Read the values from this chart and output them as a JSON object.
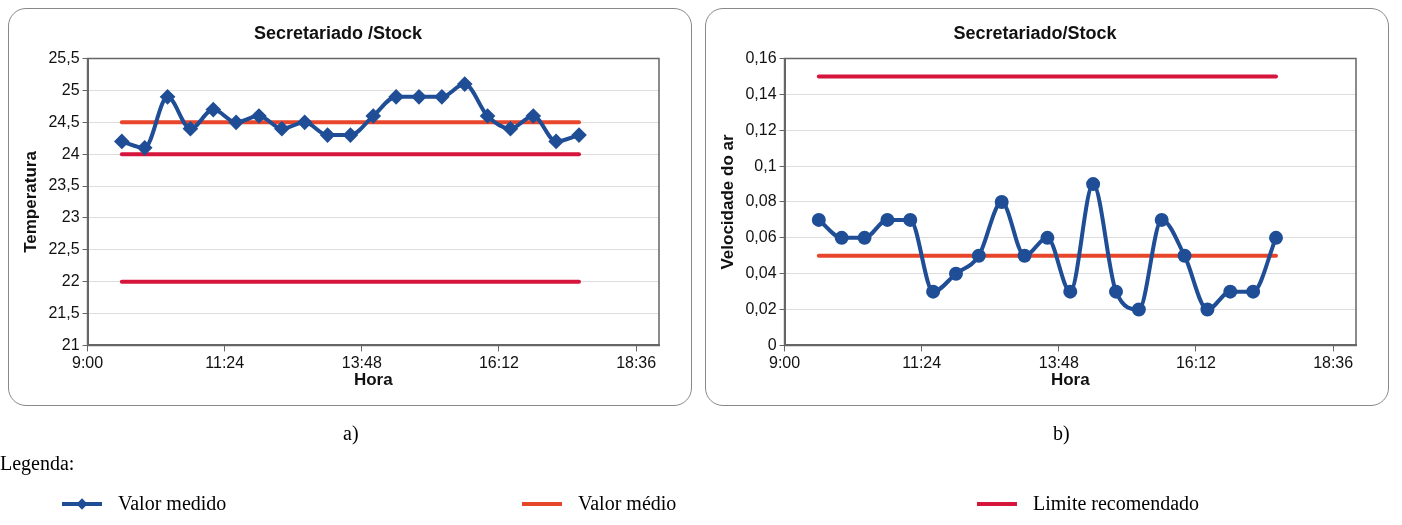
{
  "chart_data": [
    {
      "type": "line",
      "title": "Secretariado /Stock",
      "xlabel": "Hora",
      "ylabel": "Temperatura",
      "legend_title": "Legenda:",
      "legend": "bottom",
      "grid": "y",
      "marker": "diamond",
      "annotations": [
        "a)"
      ],
      "xlim": [
        9,
        19
      ],
      "xticks": [
        {
          "value": 9,
          "label": "9:00"
        },
        {
          "value": 11.4,
          "label": "11:24"
        },
        {
          "value": 13.8,
          "label": "13:48"
        },
        {
          "value": 16.2,
          "label": "16:12"
        },
        {
          "value": 18.6,
          "label": "18:36"
        }
      ],
      "ylim": [
        21,
        25.5
      ],
      "yticks": [
        21,
        {
          "value": 21.5,
          "label": "21,5"
        },
        22,
        {
          "value": 22.5,
          "label": "22,5"
        },
        23,
        {
          "value": 23.5,
          "label": "23,5"
        },
        24,
        {
          "value": 24.5,
          "label": "24,5"
        },
        25,
        {
          "value": 25.5,
          "label": "25,5"
        }
      ],
      "series": [
        {
          "name": "Valor medido",
          "color": "#1f4e96",
          "x": [
            9.6,
            10,
            10.4,
            10.8,
            11.2,
            11.6,
            12,
            12.4,
            12.8,
            13.2,
            13.6,
            14,
            14.4,
            14.8,
            15.2,
            15.6,
            16,
            16.4,
            16.8,
            17.2,
            17.6
          ],
          "values": [
            24.2,
            24.1,
            24.9,
            24.4,
            24.7,
            24.5,
            24.6,
            24.4,
            24.5,
            24.3,
            24.3,
            24.6,
            24.9,
            24.9,
            24.9,
            25.1,
            24.6,
            24.4,
            24.6,
            24.2,
            24.3
          ]
        },
        {
          "name": "Valor médio",
          "color": "#e8462a",
          "marker": "none",
          "x": [
            9.6,
            17.6
          ],
          "values": [
            24.5,
            24.5
          ]
        },
        {
          "name": "Limite recomendado",
          "color": "#d6153c",
          "marker": "none",
          "x": [
            9.6,
            17.6
          ],
          "values": [
            24,
            24
          ]
        },
        {
          "color": "#d6153c",
          "marker": "none",
          "x": [
            9.6,
            17.6
          ],
          "values": [
            22,
            22
          ]
        }
      ]
    },
    {
      "type": "line",
      "title": "Secretariado/Stock",
      "xlabel": "Hora",
      "ylabel": "Velocidade do ar",
      "grid": "y",
      "marker": "circle",
      "annotations": [
        "b)"
      ],
      "xlim": [
        9,
        19
      ],
      "xticks": [
        {
          "value": 9,
          "label": "9:00"
        },
        {
          "value": 11.4,
          "label": "11:24"
        },
        {
          "value": 13.8,
          "label": "13:48"
        },
        {
          "value": 16.2,
          "label": "16:12"
        },
        {
          "value": 18.6,
          "label": "18:36"
        }
      ],
      "ylim": [
        0,
        0.16
      ],
      "yticks": [
        0,
        {
          "value": 0.02,
          "label": "0,02"
        },
        {
          "value": 0.04,
          "label": "0,04"
        },
        {
          "value": 0.06,
          "label": "0,06"
        },
        {
          "value": 0.08,
          "label": "0,08"
        },
        {
          "value": 0.1,
          "label": "0,1"
        },
        {
          "value": 0.12,
          "label": "0,12"
        },
        {
          "value": 0.14,
          "label": "0,14"
        },
        {
          "value": 0.16,
          "label": "0,16"
        }
      ],
      "series": [
        {
          "color": "#1f4e96",
          "x": [
            9.6,
            10,
            10.4,
            10.8,
            11.2,
            11.6,
            12,
            12.4,
            12.8,
            13.2,
            13.6,
            14,
            14.4,
            14.8,
            15.2,
            15.6,
            16,
            16.4,
            16.8,
            17.2,
            17.6
          ],
          "values": [
            0.07,
            0.06,
            0.06,
            0.07,
            0.07,
            0.03,
            0.04,
            0.05,
            0.08,
            0.05,
            0.06,
            0.03,
            0.09,
            0.03,
            0.02,
            0.07,
            0.05,
            0.02,
            0.03,
            0.03,
            0.06
          ]
        },
        {
          "color": "#e8462a",
          "marker": "none",
          "x": [
            9.6,
            17.6
          ],
          "values": [
            0.05,
            0.05
          ]
        },
        {
          "color": "#d6153c",
          "marker": "none",
          "x": [
            9.6,
            17.6
          ],
          "values": [
            0.15,
            0.15
          ]
        }
      ]
    }
  ]
}
